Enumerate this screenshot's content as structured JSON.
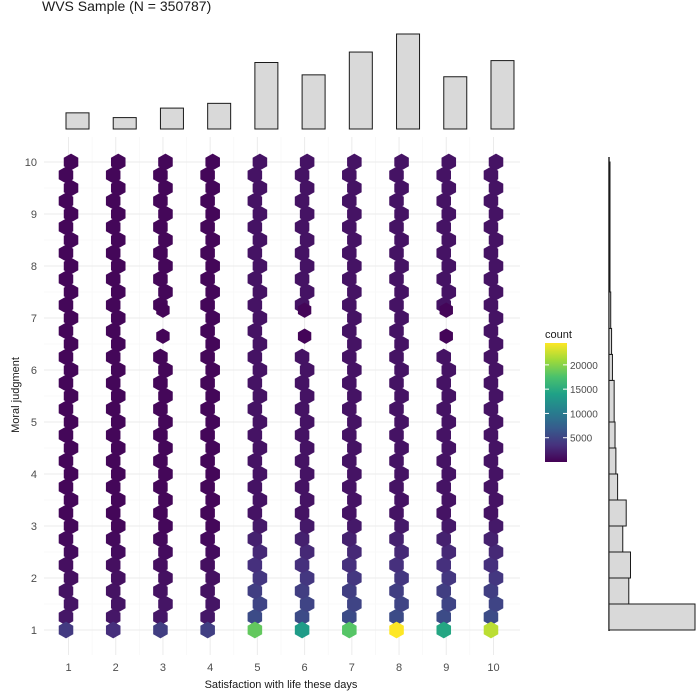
{
  "chart_data": {
    "type": "hexbin",
    "title": "WVS Sample (N = 350787)",
    "xlabel": "Satisfaction with life these days",
    "ylabel": "Moral judgment",
    "x_ticks": [
      "1",
      "2",
      "3",
      "4",
      "5",
      "6",
      "7",
      "8",
      "9",
      "10"
    ],
    "y_ticks": [
      "1",
      "2",
      "3",
      "4",
      "5",
      "6",
      "7",
      "8",
      "9",
      "10"
    ],
    "xlim": [
      0.5,
      10.5
    ],
    "ylim": [
      0.5,
      10.5
    ],
    "grid": true,
    "legend": {
      "title": "count",
      "placement": "right",
      "breaks": [
        5000,
        10000,
        15000,
        20000
      ],
      "break_labels": [
        "5000",
        "10000",
        "15000",
        "20000"
      ],
      "range": [
        1,
        24500
      ],
      "colormap": [
        "#440154",
        "#46327e",
        "#365c8d",
        "#277f8e",
        "#1fa187",
        "#4ac16d",
        "#a0da39",
        "#fde725"
      ]
    },
    "bin_counts_at_y1": [
      {
        "x": 1,
        "count": 4200
      },
      {
        "x": 2,
        "count": 3300
      },
      {
        "x": 3,
        "count": 4500
      },
      {
        "x": 4,
        "count": 4600
      },
      {
        "x": 5,
        "count": 18500
      },
      {
        "x": 6,
        "count": 13500
      },
      {
        "x": 7,
        "count": 18000
      },
      {
        "x": 8,
        "count": 24500
      },
      {
        "x": 9,
        "count": 14500
      },
      {
        "x": 10,
        "count": 22000
      }
    ],
    "sparse_bins_y7": [
      {
        "x": 3,
        "y": 7.15
      },
      {
        "x": 3,
        "y": 6.65
      },
      {
        "x": 6,
        "y": 7.15
      },
      {
        "x": 6,
        "y": 6.65
      },
      {
        "x": 9,
        "y": 7.15
      },
      {
        "x": 9,
        "y": 6.65
      }
    ],
    "marginal_top": {
      "variable": "Satisfaction with life these days",
      "categories": [
        "1",
        "2",
        "3",
        "4",
        "5",
        "6",
        "7",
        "8",
        "9",
        "10"
      ],
      "values": [
        0.17,
        0.12,
        0.22,
        0.27,
        0.7,
        0.57,
        0.81,
        1.0,
        0.55,
        0.72
      ]
    },
    "marginal_right": {
      "variable": "Moral judgment",
      "bins": [
        {
          "y": 1.25,
          "value": 1.0
        },
        {
          "y": 2.0,
          "value": 0.23
        },
        {
          "y": 2.5,
          "value": 0.25
        },
        {
          "y": 3.0,
          "value": 0.16
        },
        {
          "y": 3.5,
          "value": 0.2
        },
        {
          "y": 4.2,
          "value": 0.1
        },
        {
          "y": 4.7,
          "value": 0.08
        },
        {
          "y": 5.5,
          "value": 0.07
        },
        {
          "y": 6.0,
          "value": 0.06
        },
        {
          "y": 6.5,
          "value": 0.04
        },
        {
          "y": 7.0,
          "value": 0.03
        },
        {
          "y": 8.0,
          "value": 0.02
        },
        {
          "y": 9.5,
          "value": 0.005
        }
      ]
    }
  }
}
